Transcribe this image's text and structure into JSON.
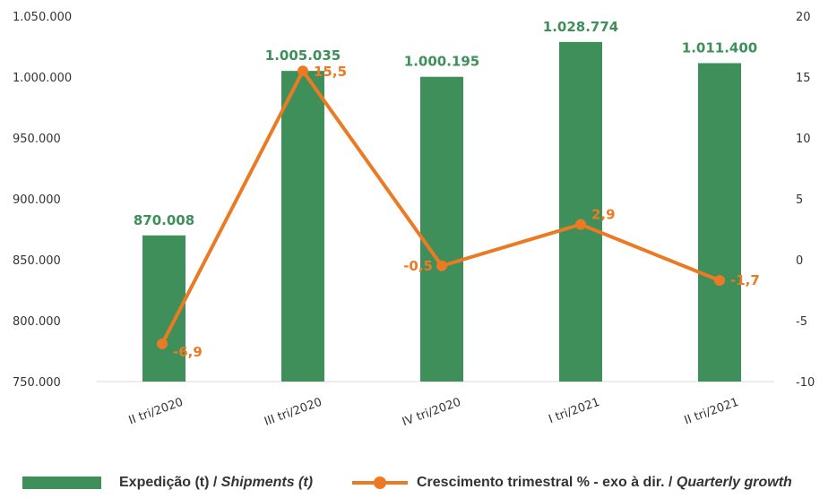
{
  "chart_data": {
    "type": "bar",
    "categories": [
      "II tri/2020",
      "III tri/2020",
      "IV tri/2020",
      "I tri/2021",
      "II tri/2021"
    ],
    "series": [
      {
        "name": "Expedição (t) / Shipments (t)",
        "type": "bar",
        "axis": "left",
        "values": [
          870008,
          1005035,
          1000195,
          1028774,
          1011400
        ],
        "labels": [
          "870.008",
          "1.005.035",
          "1.000.195",
          "1.028.774",
          "1.011.400"
        ],
        "color": "#3e8f5a"
      },
      {
        "name": "Crescimento trimestral % - exo à dir. / Quarterly growth",
        "type": "line",
        "axis": "right",
        "values": [
          -6.9,
          15.5,
          -0.5,
          2.9,
          -1.7
        ],
        "labels": [
          "-6,9",
          "15,5",
          "-0,5",
          "2,9",
          "-1,7"
        ],
        "color": "#ec7a24"
      }
    ],
    "y_left": {
      "ylim": [
        750000,
        1050000
      ],
      "ticks": [
        750000,
        800000,
        850000,
        900000,
        950000,
        1000000,
        1050000
      ],
      "tick_labels": [
        "750.000",
        "800.000",
        "850.000",
        "900.000",
        "950.000",
        "1.000.000",
        "1.050.000"
      ]
    },
    "y_right": {
      "ylim": [
        -10,
        20
      ],
      "ticks": [
        -10,
        -5,
        0,
        5,
        10,
        15,
        20
      ],
      "tick_labels": [
        "-10",
        "-5",
        "0",
        "5",
        "10",
        "15",
        "20"
      ]
    },
    "grid": false,
    "legend_position": "bottom"
  },
  "legend": {
    "bar_pt": "Expedição (t) / ",
    "bar_en": "Shipments (t)",
    "line_pt": "Crescimento trimestral % - exo à dir. / ",
    "line_en": "Quarterly growth"
  }
}
